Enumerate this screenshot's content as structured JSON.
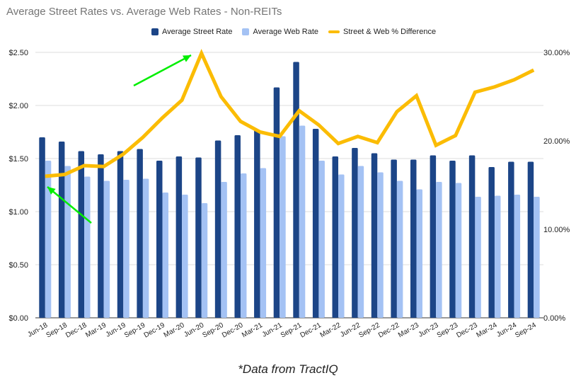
{
  "chart_data": {
    "type": "bar+line",
    "title": "Average Street Rates vs. Average Web Rates - Non-REITs",
    "categories": [
      "Jun-18",
      "Sep-18",
      "Dec-18",
      "Mar-19",
      "Jun-19",
      "Sep-19",
      "Dec-19",
      "Mar-20",
      "Jun-20",
      "Sep-20",
      "Dec-20",
      "Mar-21",
      "Jun-21",
      "Sep-21",
      "Dec-21",
      "Mar-22",
      "Jun-22",
      "Sep-22",
      "Dec-22",
      "Mar-23",
      "Jun-23",
      "Sep-23",
      "Dec-23",
      "Mar-24",
      "Jun-24",
      "Sep-24"
    ],
    "series": [
      {
        "name": "Average Street Rate",
        "type": "bar",
        "axis": "left",
        "color": "#1c4587",
        "values": [
          1.7,
          1.66,
          1.57,
          1.54,
          1.57,
          1.59,
          1.48,
          1.52,
          1.51,
          1.67,
          1.72,
          1.77,
          2.17,
          2.41,
          1.78,
          1.52,
          1.6,
          1.55,
          1.49,
          1.49,
          1.53,
          1.48,
          1.53,
          1.42,
          1.47,
          1.47
        ]
      },
      {
        "name": "Average Web Rate",
        "type": "bar",
        "axis": "left",
        "color": "#a4c2f4",
        "values": [
          1.48,
          1.43,
          1.33,
          1.29,
          1.3,
          1.31,
          1.18,
          1.16,
          1.08,
          1.28,
          1.36,
          1.41,
          1.71,
          1.81,
          1.48,
          1.35,
          1.43,
          1.37,
          1.29,
          1.21,
          1.28,
          1.27,
          1.14,
          1.15,
          1.16,
          1.14
        ]
      },
      {
        "name": "Street & Web % Difference",
        "type": "line",
        "axis": "right",
        "color": "#fbbc04",
        "values": [
          16.0,
          16.2,
          17.2,
          17.1,
          18.5,
          20.4,
          22.6,
          24.6,
          29.9,
          25.0,
          22.2,
          21.0,
          20.5,
          23.4,
          21.8,
          19.7,
          20.5,
          19.8,
          23.3,
          25.1,
          19.5,
          20.6,
          25.5,
          26.1,
          26.9,
          28.0
        ]
      }
    ],
    "left_axis": {
      "ylim": [
        0,
        2.5
      ],
      "ticks": [
        "$0.00",
        "$0.50",
        "$1.00",
        "$1.50",
        "$2.00",
        "$2.50"
      ]
    },
    "right_axis": {
      "ylim": [
        0,
        30
      ],
      "ticks": [
        "0.00%",
        "10.00%",
        "20.00%",
        "30.00%"
      ]
    },
    "legend": "top",
    "grid": true,
    "annotations": [
      {
        "type": "arrow",
        "color": "#00ee00",
        "points_to": "Jun-18 % difference"
      },
      {
        "type": "arrow",
        "color": "#00ee00",
        "points_to": "Jun-20 % difference"
      }
    ]
  },
  "footer": "*Data from TractIQ"
}
